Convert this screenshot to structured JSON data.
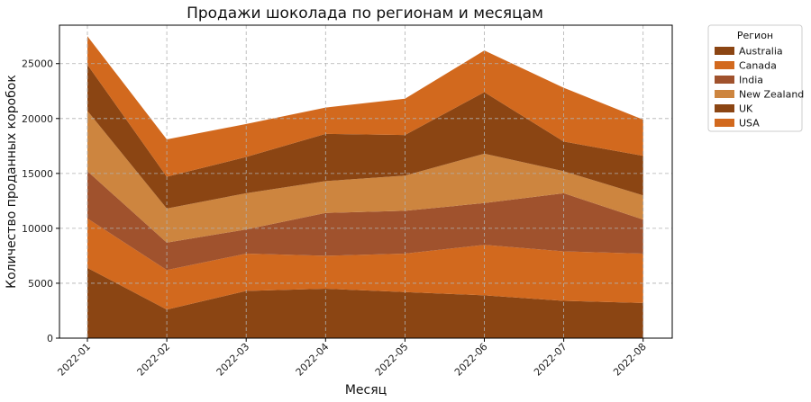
{
  "chart_data": {
    "type": "area",
    "stacked": true,
    "title": "Продажи шоколада по регионам и месяцам",
    "xlabel": "Месяц",
    "ylabel": "Количество проданных коробок",
    "categories": [
      "2022-01",
      "2022-02",
      "2022-03",
      "2022-04",
      "2022-05",
      "2022-06",
      "2022-07",
      "2022-08"
    ],
    "ylim": [
      0,
      28500
    ],
    "yticks": [
      0,
      5000,
      10000,
      15000,
      20000,
      25000
    ],
    "grid": true,
    "legend": {
      "title": "Регион",
      "placement": "outside-right-top"
    },
    "series": [
      {
        "name": "Australia",
        "color": "#8b4513",
        "values": [
          6400,
          2600,
          4300,
          4500,
          4200,
          3900,
          3400,
          3200
        ]
      },
      {
        "name": "Canada",
        "color": "#d2691e",
        "values": [
          4500,
          3600,
          3400,
          3000,
          3500,
          4600,
          4500,
          4500
        ]
      },
      {
        "name": "India",
        "color": "#a0522d",
        "values": [
          4300,
          2500,
          2200,
          3900,
          3900,
          3800,
          5300,
          3100
        ]
      },
      {
        "name": "New Zealand",
        "color": "#cd853f",
        "values": [
          5500,
          3100,
          3300,
          2900,
          3200,
          4500,
          2000,
          2200
        ]
      },
      {
        "name": "UK",
        "color": "#8b4513",
        "values": [
          4200,
          2900,
          3300,
          4300,
          3700,
          5600,
          2700,
          3600
        ]
      },
      {
        "name": "USA",
        "color": "#d2691e",
        "values": [
          2600,
          3400,
          3000,
          2400,
          3300,
          3800,
          4900,
          3300
        ]
      }
    ]
  }
}
